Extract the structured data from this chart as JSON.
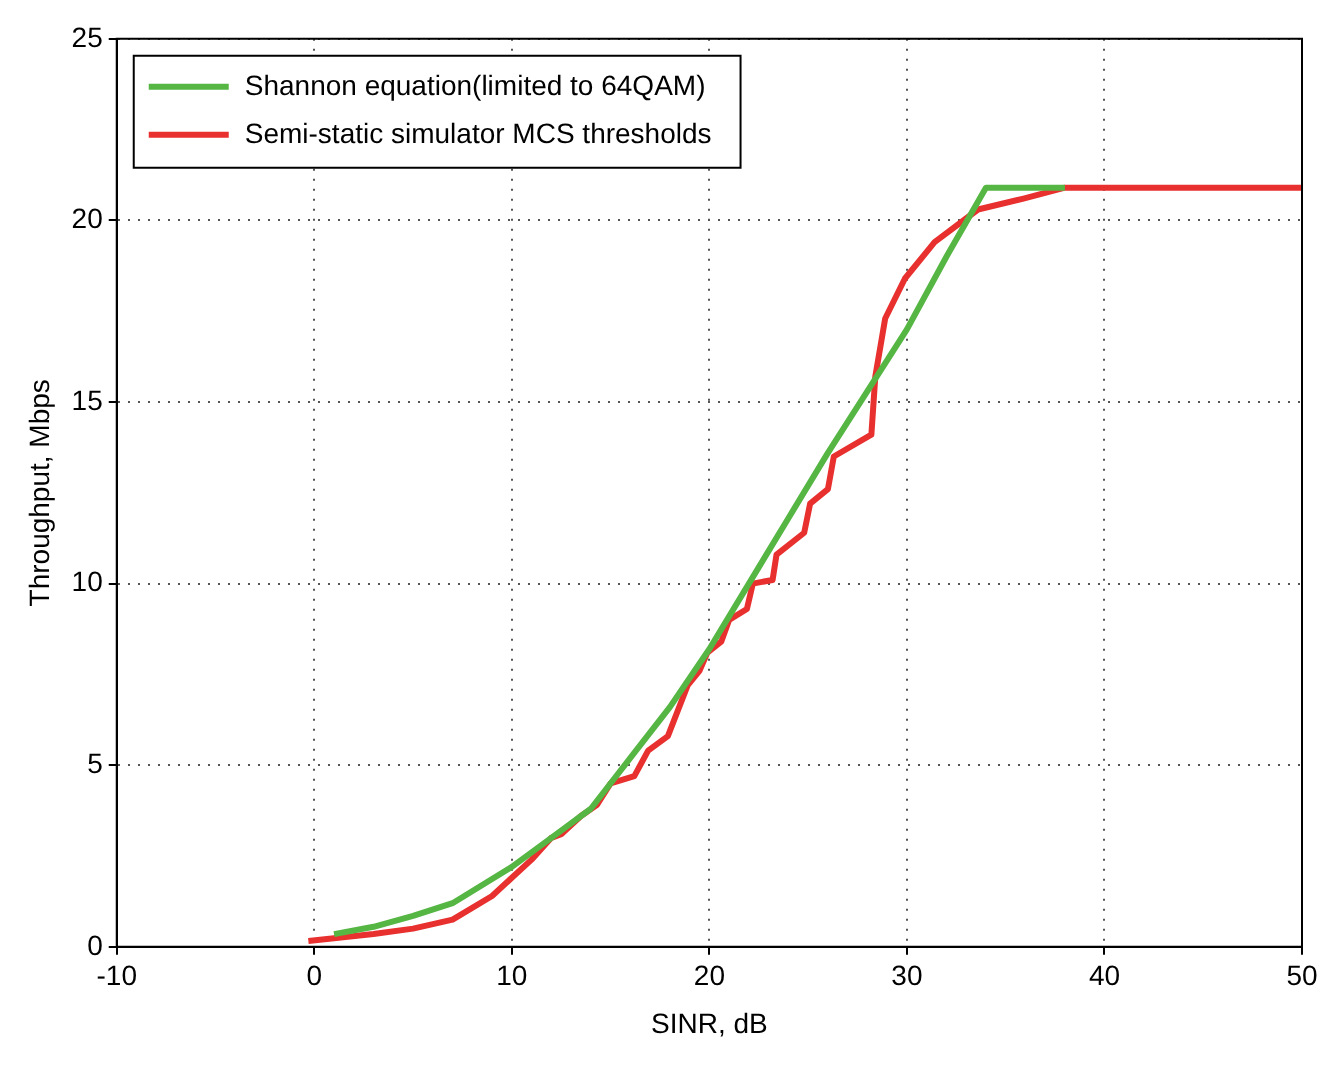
{
  "chart_data": {
    "type": "line",
    "xlabel": "SINR, dB",
    "ylabel": "Throughput, Mbps",
    "xlim": [
      -10,
      50
    ],
    "xticks": [
      -10,
      0,
      10,
      20,
      30,
      40,
      50
    ],
    "ylim": [
      0,
      25
    ],
    "yticks": [
      0,
      5,
      10,
      15,
      20,
      25
    ],
    "grid": true,
    "legend": "top left",
    "marker": "none",
    "line_style": "solid",
    "series": [
      {
        "name": "Shannon equation(limited to 64QAM)",
        "color": "#55b643",
        "x": [
          1,
          3,
          5,
          7,
          10,
          12,
          14,
          16,
          18,
          20,
          22,
          24,
          26,
          28,
          30,
          32,
          34,
          38
        ],
        "values": [
          0.35,
          0.55,
          0.85,
          1.2,
          2.2,
          3.0,
          3.8,
          5.2,
          6.6,
          8.2,
          10.0,
          11.8,
          13.6,
          15.3,
          17.0,
          19.0,
          20.9,
          20.9
        ]
      },
      {
        "name": "Semi-static simulator MCS thresholds",
        "color": "#e8302f",
        "x": [
          -0.3,
          3,
          5,
          7,
          9,
          10,
          11,
          12,
          12.5,
          13.5,
          14.3,
          15,
          16.2,
          16.9,
          17.9,
          18.9,
          19.5,
          19.9,
          20.6,
          21,
          21.9,
          22.2,
          23.2,
          23.4,
          24.8,
          25.1,
          26,
          26.3,
          28.2,
          28.4,
          28.9,
          29.9,
          31.4,
          33.6,
          35.9,
          38,
          50
        ],
        "values": [
          0.16,
          0.35,
          0.5,
          0.75,
          1.4,
          1.9,
          2.4,
          3.0,
          3.1,
          3.6,
          3.9,
          4.5,
          4.7,
          5.4,
          5.8,
          7.2,
          7.6,
          8.1,
          8.4,
          9.0,
          9.3,
          10.0,
          10.1,
          10.8,
          11.4,
          12.2,
          12.6,
          13.5,
          14.1,
          15.7,
          17.3,
          18.4,
          19.4,
          20.3,
          20.6,
          20.9,
          20.9
        ]
      }
    ]
  }
}
